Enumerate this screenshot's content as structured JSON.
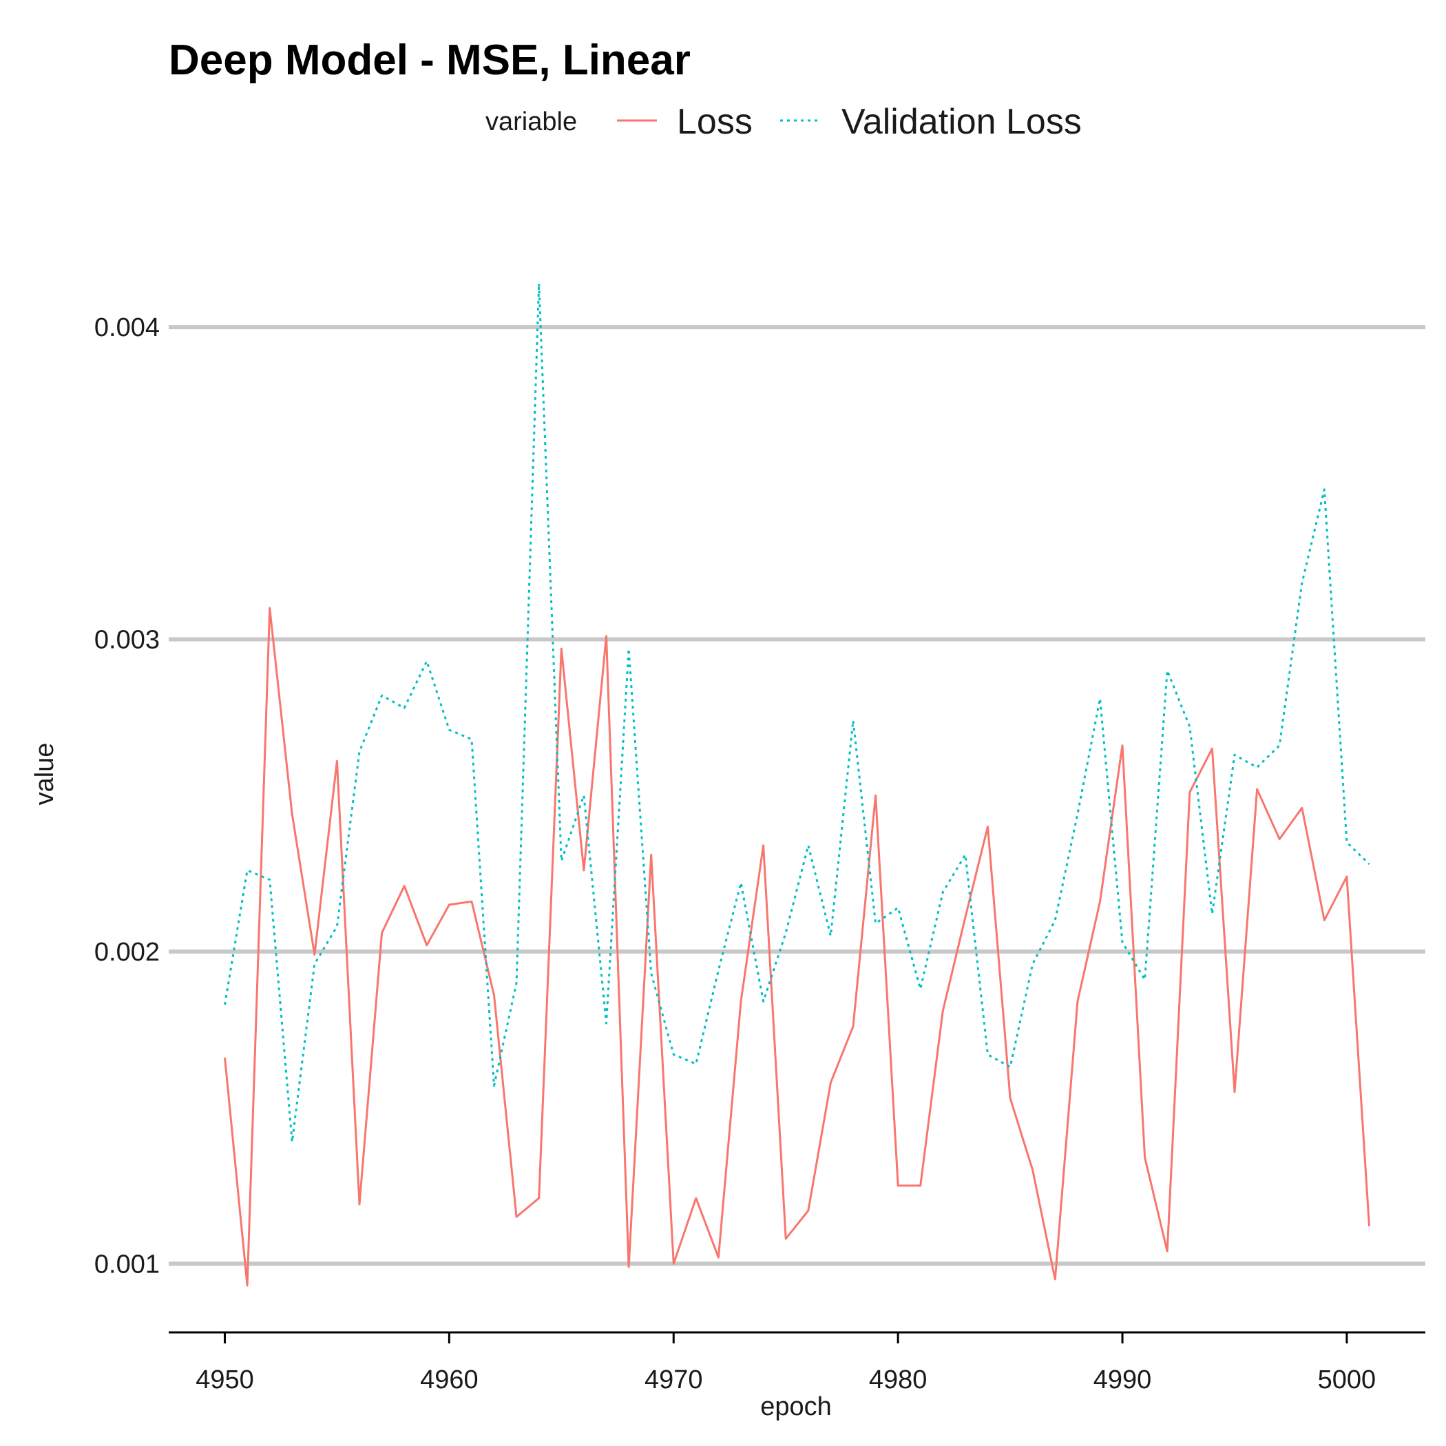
{
  "chart_data": {
    "type": "line",
    "title": "Deep Model - MSE, Linear",
    "xlabel": "epoch",
    "ylabel": "value",
    "xlim": [
      4947.5,
      5003.5
    ],
    "ylim": [
      0.00078,
      0.00432
    ],
    "xticks": [
      4950,
      4960,
      4970,
      4980,
      4990,
      5000
    ],
    "xtick_labels": [
      "4950",
      "4960",
      "4970",
      "4980",
      "4990",
      "5000"
    ],
    "yticks": [
      0.001,
      0.002,
      0.003,
      0.004
    ],
    "ytick_labels": [
      "0.001",
      "0.002",
      "0.003",
      "0.004"
    ],
    "grid": "horizontal-major",
    "legend": {
      "title": "variable",
      "position": "top"
    },
    "x": [
      4950,
      4951,
      4952,
      4953,
      4954,
      4955,
      4956,
      4957,
      4958,
      4959,
      4960,
      4961,
      4962,
      4963,
      4964,
      4965,
      4966,
      4967,
      4968,
      4969,
      4970,
      4971,
      4972,
      4973,
      4974,
      4975,
      4976,
      4977,
      4978,
      4979,
      4980,
      4981,
      4982,
      4983,
      4984,
      4985,
      4986,
      4987,
      4988,
      4989,
      4990,
      4991,
      4992,
      4993,
      4994,
      4995,
      4996,
      4997,
      4998,
      4999,
      5000,
      5001
    ],
    "series": [
      {
        "name": "Loss",
        "color": "#F8766D",
        "dash": "solid",
        "values": [
          0.00166,
          0.00093,
          0.0031,
          0.00244,
          0.00199,
          0.00261,
          0.00119,
          0.00206,
          0.00221,
          0.00202,
          0.00215,
          0.00216,
          0.00186,
          0.00115,
          0.00121,
          0.00297,
          0.00226,
          0.00301,
          0.00099,
          0.00231,
          0.001,
          0.00121,
          0.00102,
          0.00184,
          0.00234,
          0.00108,
          0.00117,
          0.00158,
          0.00176,
          0.0025,
          0.00125,
          0.00125,
          0.00181,
          0.00211,
          0.0024,
          0.00153,
          0.0013,
          0.00095,
          0.00184,
          0.00216,
          0.00266,
          0.00134,
          0.00104,
          0.00251,
          0.00265,
          0.00155,
          0.00252,
          0.00236,
          0.00246,
          0.0021,
          0.00224,
          0.00112
        ]
      },
      {
        "name": "Validation Loss",
        "color": "#00BFC4",
        "dash": "dotted",
        "values": [
          0.00183,
          0.00226,
          0.00223,
          0.00139,
          0.00196,
          0.00208,
          0.00264,
          0.00282,
          0.00278,
          0.00293,
          0.00271,
          0.00268,
          0.00157,
          0.0019,
          0.00414,
          0.00229,
          0.0025,
          0.00177,
          0.00297,
          0.00193,
          0.00167,
          0.00164,
          0.00194,
          0.00222,
          0.00184,
          0.00206,
          0.00234,
          0.00205,
          0.00274,
          0.00209,
          0.00214,
          0.00188,
          0.00219,
          0.00231,
          0.00167,
          0.00163,
          0.00196,
          0.0021,
          0.00244,
          0.00281,
          0.00203,
          0.00191,
          0.0029,
          0.00272,
          0.00212,
          0.00263,
          0.00259,
          0.00266,
          0.00318,
          0.00348,
          0.00235,
          0.00228
        ]
      }
    ]
  }
}
